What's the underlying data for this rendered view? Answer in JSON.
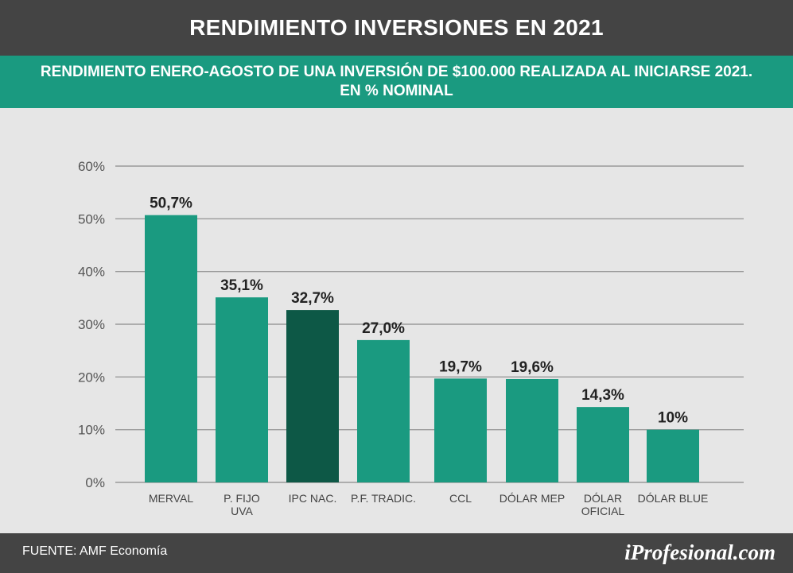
{
  "header": {
    "title": "RENDIMIENTO INVERSIONES EN 2021",
    "subtitle_line1": "RENDIMIENTO ENERO-AGOSTO DE UNA INVERSIÓN DE $100.000 REALIZADA AL INICIARSE 2021.",
    "subtitle_line2": "EN % NOMINAL"
  },
  "footer": {
    "source": "FUENTE: AMF Economía",
    "logo_text": "iProfesional.com"
  },
  "colors": {
    "bar": "#1a9a80",
    "bar_highlight": "#0d5846",
    "grid": "#9a9a9a",
    "header_bg": "#444444",
    "subtitle_bg": "#1a9a80",
    "chart_bg": "#e6e6e6"
  },
  "chart_data": {
    "type": "bar",
    "title": "RENDIMIENTO INVERSIONES EN 2021",
    "subtitle": "RENDIMIENTO ENERO-AGOSTO DE UNA INVERSIÓN DE $100.000 REALIZADA AL INICIARSE 2021. EN % NOMINAL",
    "categories": [
      [
        "MERVAL"
      ],
      [
        "P. FIJO",
        "UVA"
      ],
      [
        "IPC NAC."
      ],
      [
        "P.F. TRADIC."
      ],
      [
        "CCL"
      ],
      [
        "DÓLAR MEP"
      ],
      [
        "DÓLAR",
        "OFICIAL"
      ],
      [
        "DÓLAR BLUE"
      ]
    ],
    "values": [
      50.7,
      35.1,
      32.7,
      27.0,
      19.7,
      19.6,
      14.3,
      10
    ],
    "value_labels": [
      "50,7%",
      "35,1%",
      "32,7%",
      "27,0%",
      "19,7%",
      "19,6%",
      "14,3%",
      "10%"
    ],
    "highlight_index": 2,
    "y_ticks": [
      0,
      10,
      20,
      30,
      40,
      50,
      60
    ],
    "y_tick_labels": [
      "0%",
      "10%",
      "20%",
      "30%",
      "40%",
      "50%",
      "60%"
    ],
    "ylim": [
      0,
      60
    ],
    "grid": true,
    "xlabel": "",
    "ylabel": ""
  }
}
